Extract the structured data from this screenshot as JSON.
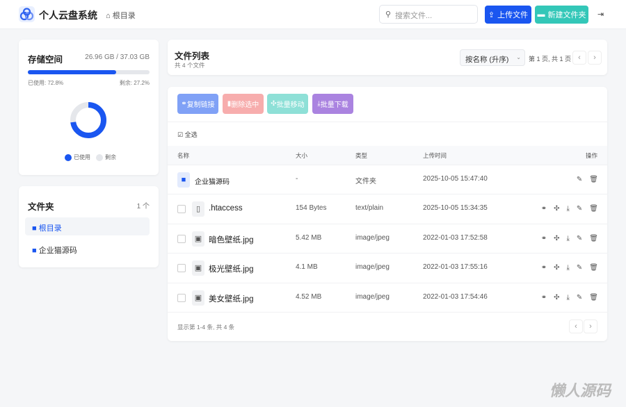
{
  "app": {
    "title": "个人云盘系统",
    "breadcrumb": "根目录"
  },
  "search": {
    "placeholder": "搜索文件..."
  },
  "toolbar": {
    "upload": "上传文件",
    "new_folder": "新建文件夹"
  },
  "colors": {
    "primary": "#1a56f0",
    "teal": "#33c7b8",
    "red": "#f26b6b",
    "purple": "#8e5ad6"
  },
  "storage": {
    "title": "存储空间",
    "usage": "26.96 GB / 37.03 GB",
    "used_label": "已使用: 72.8%",
    "free_label": "剩余: 27.2%",
    "used_percent": 72.8,
    "legend_used": "已使用",
    "legend_free": "剩余"
  },
  "folders": {
    "title": "文件夹",
    "count": "1 个",
    "items": [
      {
        "label": "根目录",
        "active": true
      },
      {
        "label": "企业猫源码",
        "active": false
      }
    ]
  },
  "list": {
    "title": "文件列表",
    "subtitle": "共 4 个文件",
    "sort": "按名称 (升序)",
    "page_info": "第 1 页, 共 1 页"
  },
  "bulk": {
    "copy": "复制链接",
    "delete": "删除选中",
    "move": "批量移动",
    "download": "批量下载"
  },
  "select_all": "全选",
  "columns": {
    "name": "名称",
    "size": "大小",
    "type": "类型",
    "time": "上传时间",
    "actions": "操作"
  },
  "rows": [
    {
      "name": "企业猫源码",
      "size": "-",
      "type": "文件夹",
      "time": "2025-10-05 15:47:40",
      "kind": "folder"
    },
    {
      "name": ".htaccess",
      "size": "154 Bytes",
      "type": "text/plain",
      "time": "2025-10-05 15:34:35",
      "kind": "file"
    },
    {
      "name": "暗色壁纸.jpg",
      "size": "5.42 MB",
      "type": "image/jpeg",
      "time": "2022-01-03 17:52:58",
      "kind": "image"
    },
    {
      "name": "极光壁纸.jpg",
      "size": "4.1 MB",
      "type": "image/jpeg",
      "time": "2022-01-03 17:55:16",
      "kind": "image"
    },
    {
      "name": "美女壁纸.jpg",
      "size": "4.52 MB",
      "type": "image/jpeg",
      "time": "2022-01-03 17:54:46",
      "kind": "image"
    }
  ],
  "footer": "显示第 1-4 条, 共 4 条",
  "watermark": "懒人源码"
}
